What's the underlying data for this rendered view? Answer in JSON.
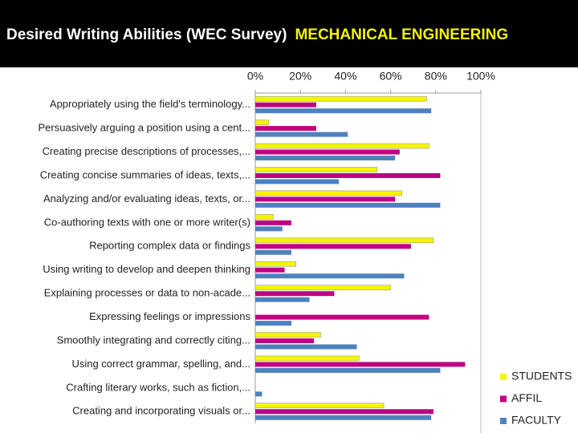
{
  "chart_data": {
    "type": "hbar",
    "title": "Desired Writing Abilities (WEC Survey)",
    "subtitle": "MECHANICAL ENGINEERING",
    "categories": [
      "Appropriately using the field's terminology...",
      "Persuasively arguing a position using a cent...",
      "Creating precise descriptions of processes,...",
      "Creating concise summaries of ideas, texts,...",
      "Analyzing and/or evaluating ideas, texts, or...",
      "Co-authoring texts with one or more writer(s)",
      "Reporting complex data or findings",
      "Using writing to develop and deepen thinking",
      "Explaining processes or data to non-acade...",
      "Expressing feelings or impressions",
      "Smoothly integrating and correctly citing...",
      "Using correct grammar, spelling, and...",
      "Crafting literary works, such as fiction,...",
      "Creating and incorporating visuals or..."
    ],
    "series": [
      {
        "name": "STUDENTS",
        "color": "#f5f500",
        "values": [
          76,
          6,
          77,
          54,
          65,
          8,
          79,
          18,
          60,
          0,
          29,
          46,
          0,
          57
        ]
      },
      {
        "name": "AFFIL",
        "color": "#c0007f",
        "values": [
          27,
          27,
          64,
          82,
          62,
          16,
          69,
          13,
          35,
          77,
          26,
          93,
          0,
          79
        ]
      },
      {
        "name": "FACULTY",
        "color": "#4f81bd",
        "values": [
          78,
          41,
          62,
          37,
          82,
          12,
          16,
          66,
          24,
          16,
          45,
          82,
          3,
          78
        ]
      }
    ],
    "xlim": [
      0,
      100
    ],
    "xticks": [
      {
        "value": 0,
        "label": "0%"
      },
      {
        "value": 20,
        "label": "20%"
      },
      {
        "value": 40,
        "label": "40%"
      },
      {
        "value": 60,
        "label": "60%"
      },
      {
        "value": 80,
        "label": "80%"
      },
      {
        "value": 100,
        "label": "100%"
      }
    ],
    "legend": "bottom-right"
  }
}
